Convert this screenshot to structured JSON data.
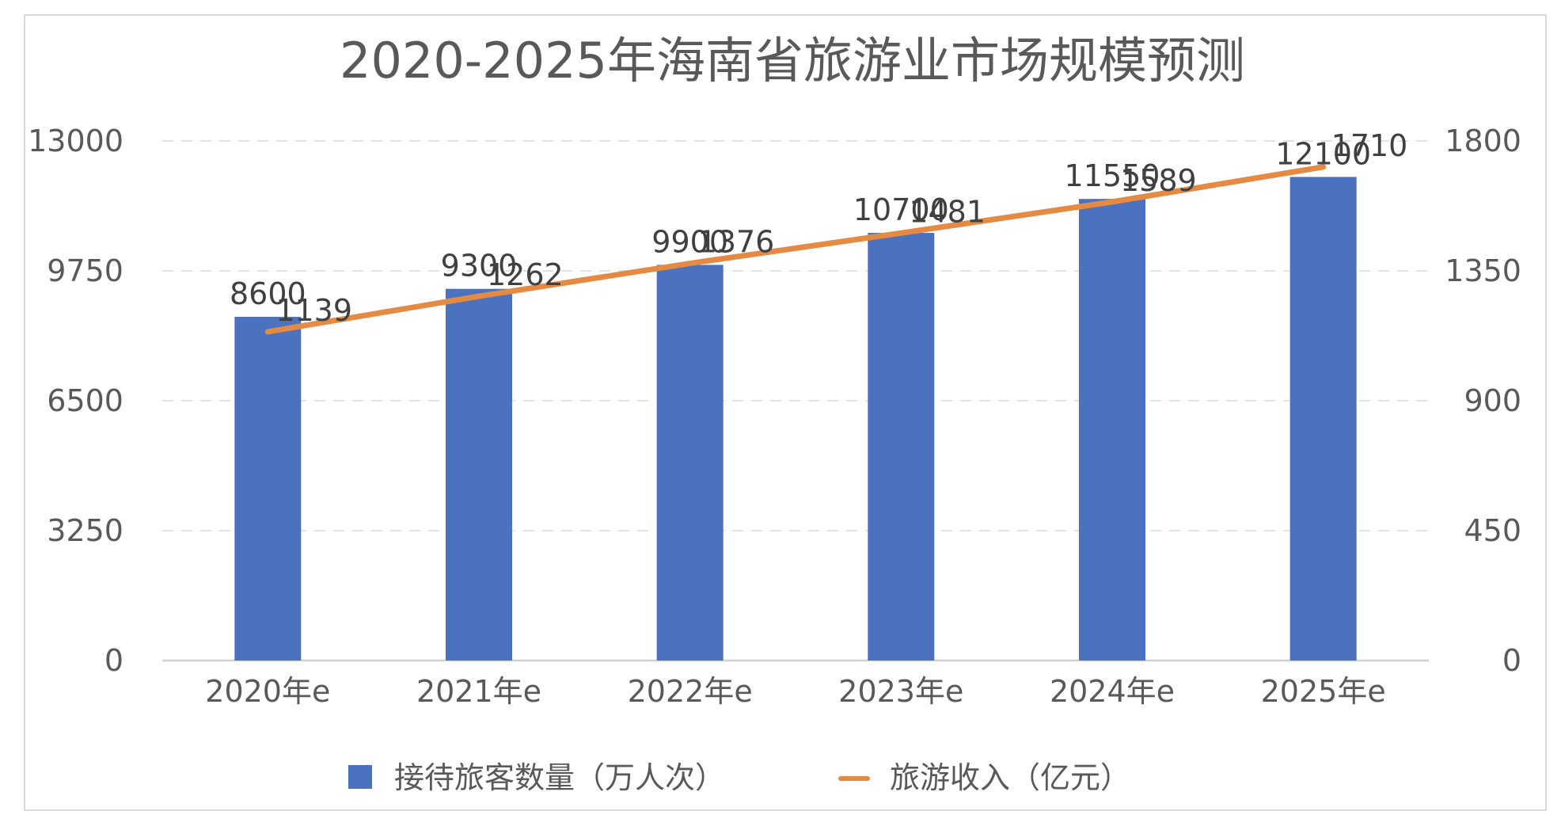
{
  "chart_data": {
    "type": "bar",
    "title": "2020-2025年海南省旅游业市场规模预测",
    "categories": [
      "2020年e",
      "2021年e",
      "2022年e",
      "2023年e",
      "2024年e",
      "2025年e"
    ],
    "series": [
      {
        "name": "接待旅客数量（万人次）",
        "type": "bar",
        "axis": "left",
        "color": "#4a72bf",
        "values": [
          8600,
          9300,
          9900,
          10700,
          11550,
          12100
        ],
        "labels": [
          "8600",
          "9300",
          "9900",
          "10700",
          "11550",
          "12100"
        ]
      },
      {
        "name": "旅游收入（亿元）",
        "type": "line",
        "axis": "right",
        "color": "#e58a43",
        "values": [
          1139,
          1262,
          1376,
          1481,
          1589,
          1710
        ],
        "labels": [
          "1139",
          "1262",
          "1376",
          "1481",
          "1589",
          "1710"
        ]
      }
    ],
    "y_left": {
      "range": [
        0,
        13000
      ],
      "ticks": [
        "0",
        "3250",
        "6500",
        "9750",
        "13000"
      ]
    },
    "y_right": {
      "range": [
        0,
        1800
      ],
      "ticks": [
        "0",
        "450",
        "900",
        "1350",
        "1800"
      ]
    },
    "grid": "horizontal-dashed",
    "legend_position": "bottom"
  }
}
